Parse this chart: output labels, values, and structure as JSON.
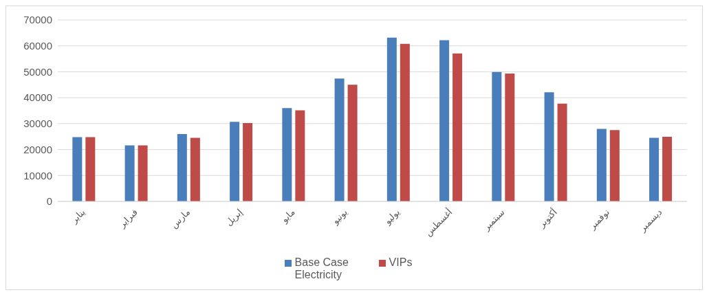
{
  "chart_data": {
    "type": "bar",
    "categories": [
      "يناير",
      "فبراير",
      "مارس",
      "إبريل",
      "مايو",
      "يونيو",
      "يوليو",
      "أغسطس",
      "سبتمبر",
      "أكتوبر",
      "نوفمبر",
      "ديسمبر"
    ],
    "series": [
      {
        "name": "Base Case Electricity",
        "color": "#4a7ebb",
        "values": [
          24800,
          21600,
          26000,
          30700,
          36000,
          47400,
          63200,
          62200,
          49900,
          42100,
          28000,
          24500
        ]
      },
      {
        "name": "VIPs",
        "color": "#be4b48",
        "values": [
          24800,
          21600,
          24500,
          30200,
          35100,
          45000,
          60800,
          57100,
          49300,
          37700,
          27500,
          24900
        ]
      }
    ],
    "ylim": [
      0,
      70000
    ],
    "yticks": [
      0,
      10000,
      20000,
      30000,
      40000,
      50000,
      60000,
      70000
    ],
    "grid": "y",
    "legend": "bottom"
  }
}
